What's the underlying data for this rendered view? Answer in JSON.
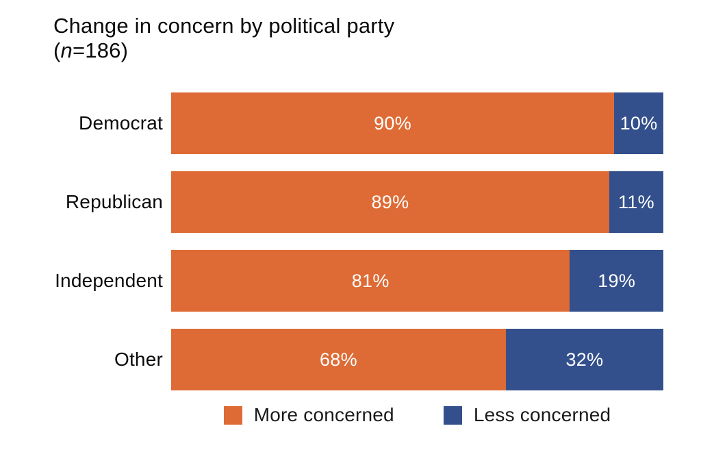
{
  "title": {
    "line1": "Change in concern by political party",
    "line2_open": "(",
    "line2_n": "n",
    "line2_rest": "=186)"
  },
  "colors": {
    "more_concerned": "#DE6B35",
    "less_concerned": "#33508C",
    "background": "#FFFFFF",
    "title_text": "#0A0A0A",
    "value_label_text": "#FFFFFF"
  },
  "legend": {
    "items": [
      {
        "label": "More concerned",
        "color": "#DE6B35"
      },
      {
        "label": "Less concerned",
        "color": "#33508C"
      }
    ]
  },
  "chart_data": {
    "type": "bar",
    "orientation": "horizontal",
    "stacked": true,
    "title": "Change in concern by political party (n=186)",
    "sample_size": 186,
    "categories": [
      "Democrat",
      "Republican",
      "Independent",
      "Other"
    ],
    "series": [
      {
        "name": "More concerned",
        "color": "#DE6B35",
        "values": [
          90,
          89,
          81,
          68
        ]
      },
      {
        "name": "Less concerned",
        "color": "#33508C",
        "values": [
          10,
          11,
          19,
          32
        ]
      }
    ],
    "value_label_format": "{value}%",
    "xlim": [
      0,
      100
    ],
    "grid": false,
    "legend_position": "bottom"
  }
}
